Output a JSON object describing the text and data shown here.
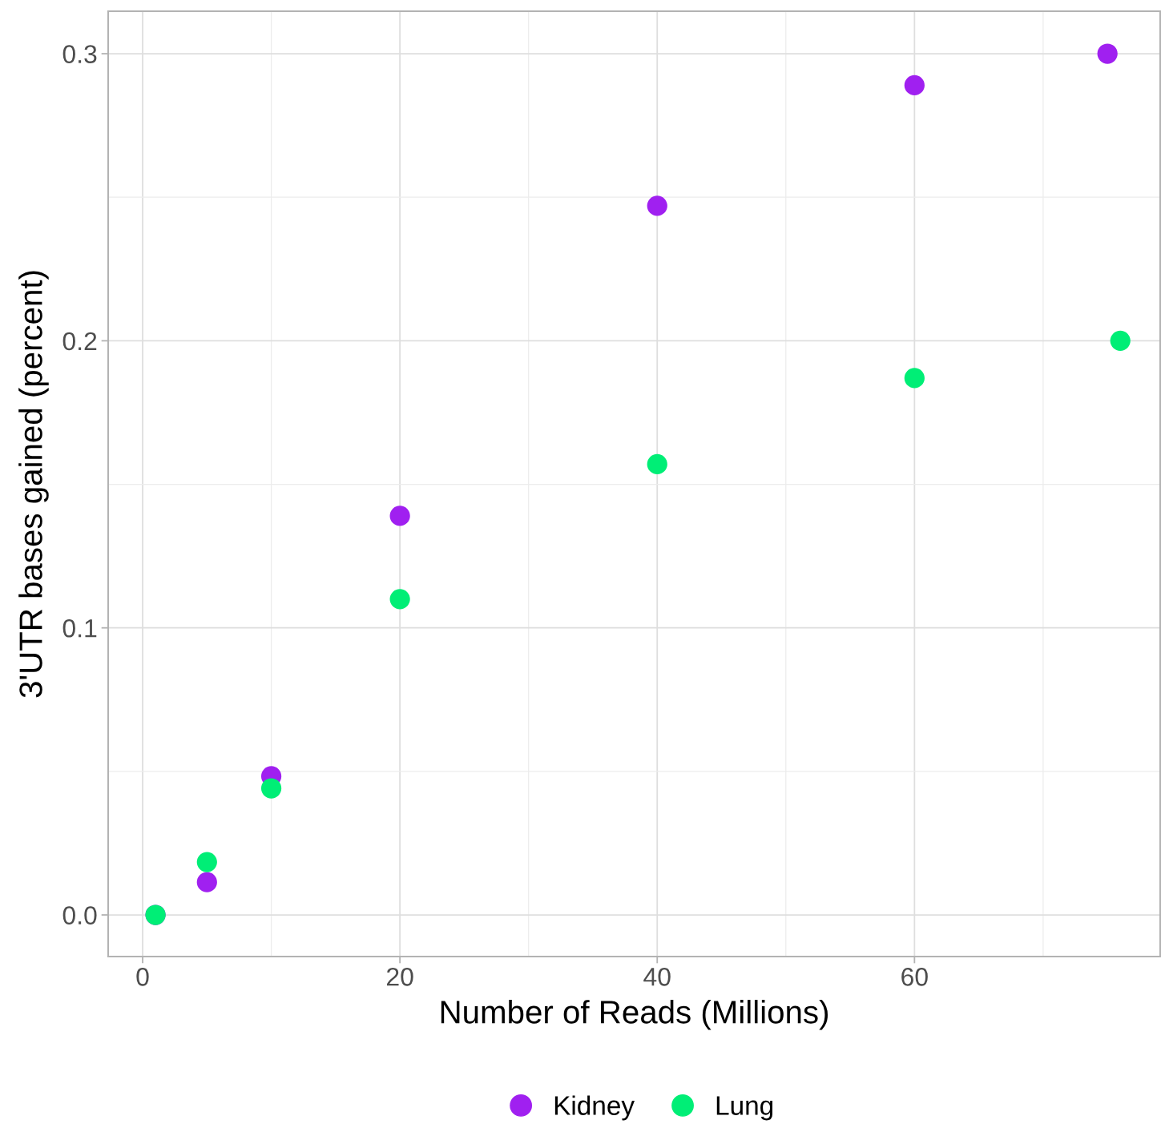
{
  "chart_data": {
    "type": "scatter",
    "xlabel": "Number of Reads (Millions)",
    "ylabel": "3'UTR bases gained (percent)",
    "xlim": [
      -2.68,
      79.1
    ],
    "ylim": [
      -0.0145,
      0.3148
    ],
    "xticks": [
      0,
      20,
      40,
      60
    ],
    "yticks": [
      {
        "value": 0,
        "label": "0.0"
      },
      0.1,
      0.2,
      0.3
    ],
    "grid": true,
    "legend": "bottom",
    "marker": "circle",
    "series": [
      {
        "name": "Kidney",
        "color": "#a020f0",
        "x": [
          1,
          5,
          10,
          20,
          40,
          60,
          75
        ],
        "values": [
          0.0,
          0.0114,
          0.0483,
          0.139,
          0.247,
          0.289,
          0.3
        ]
      },
      {
        "name": "Lung",
        "color": "#00ee76",
        "x": [
          1,
          5,
          10,
          20,
          40,
          60,
          76
        ],
        "values": [
          0.0,
          0.0184,
          0.0441,
          0.11,
          0.157,
          0.187,
          0.2
        ]
      }
    ]
  }
}
